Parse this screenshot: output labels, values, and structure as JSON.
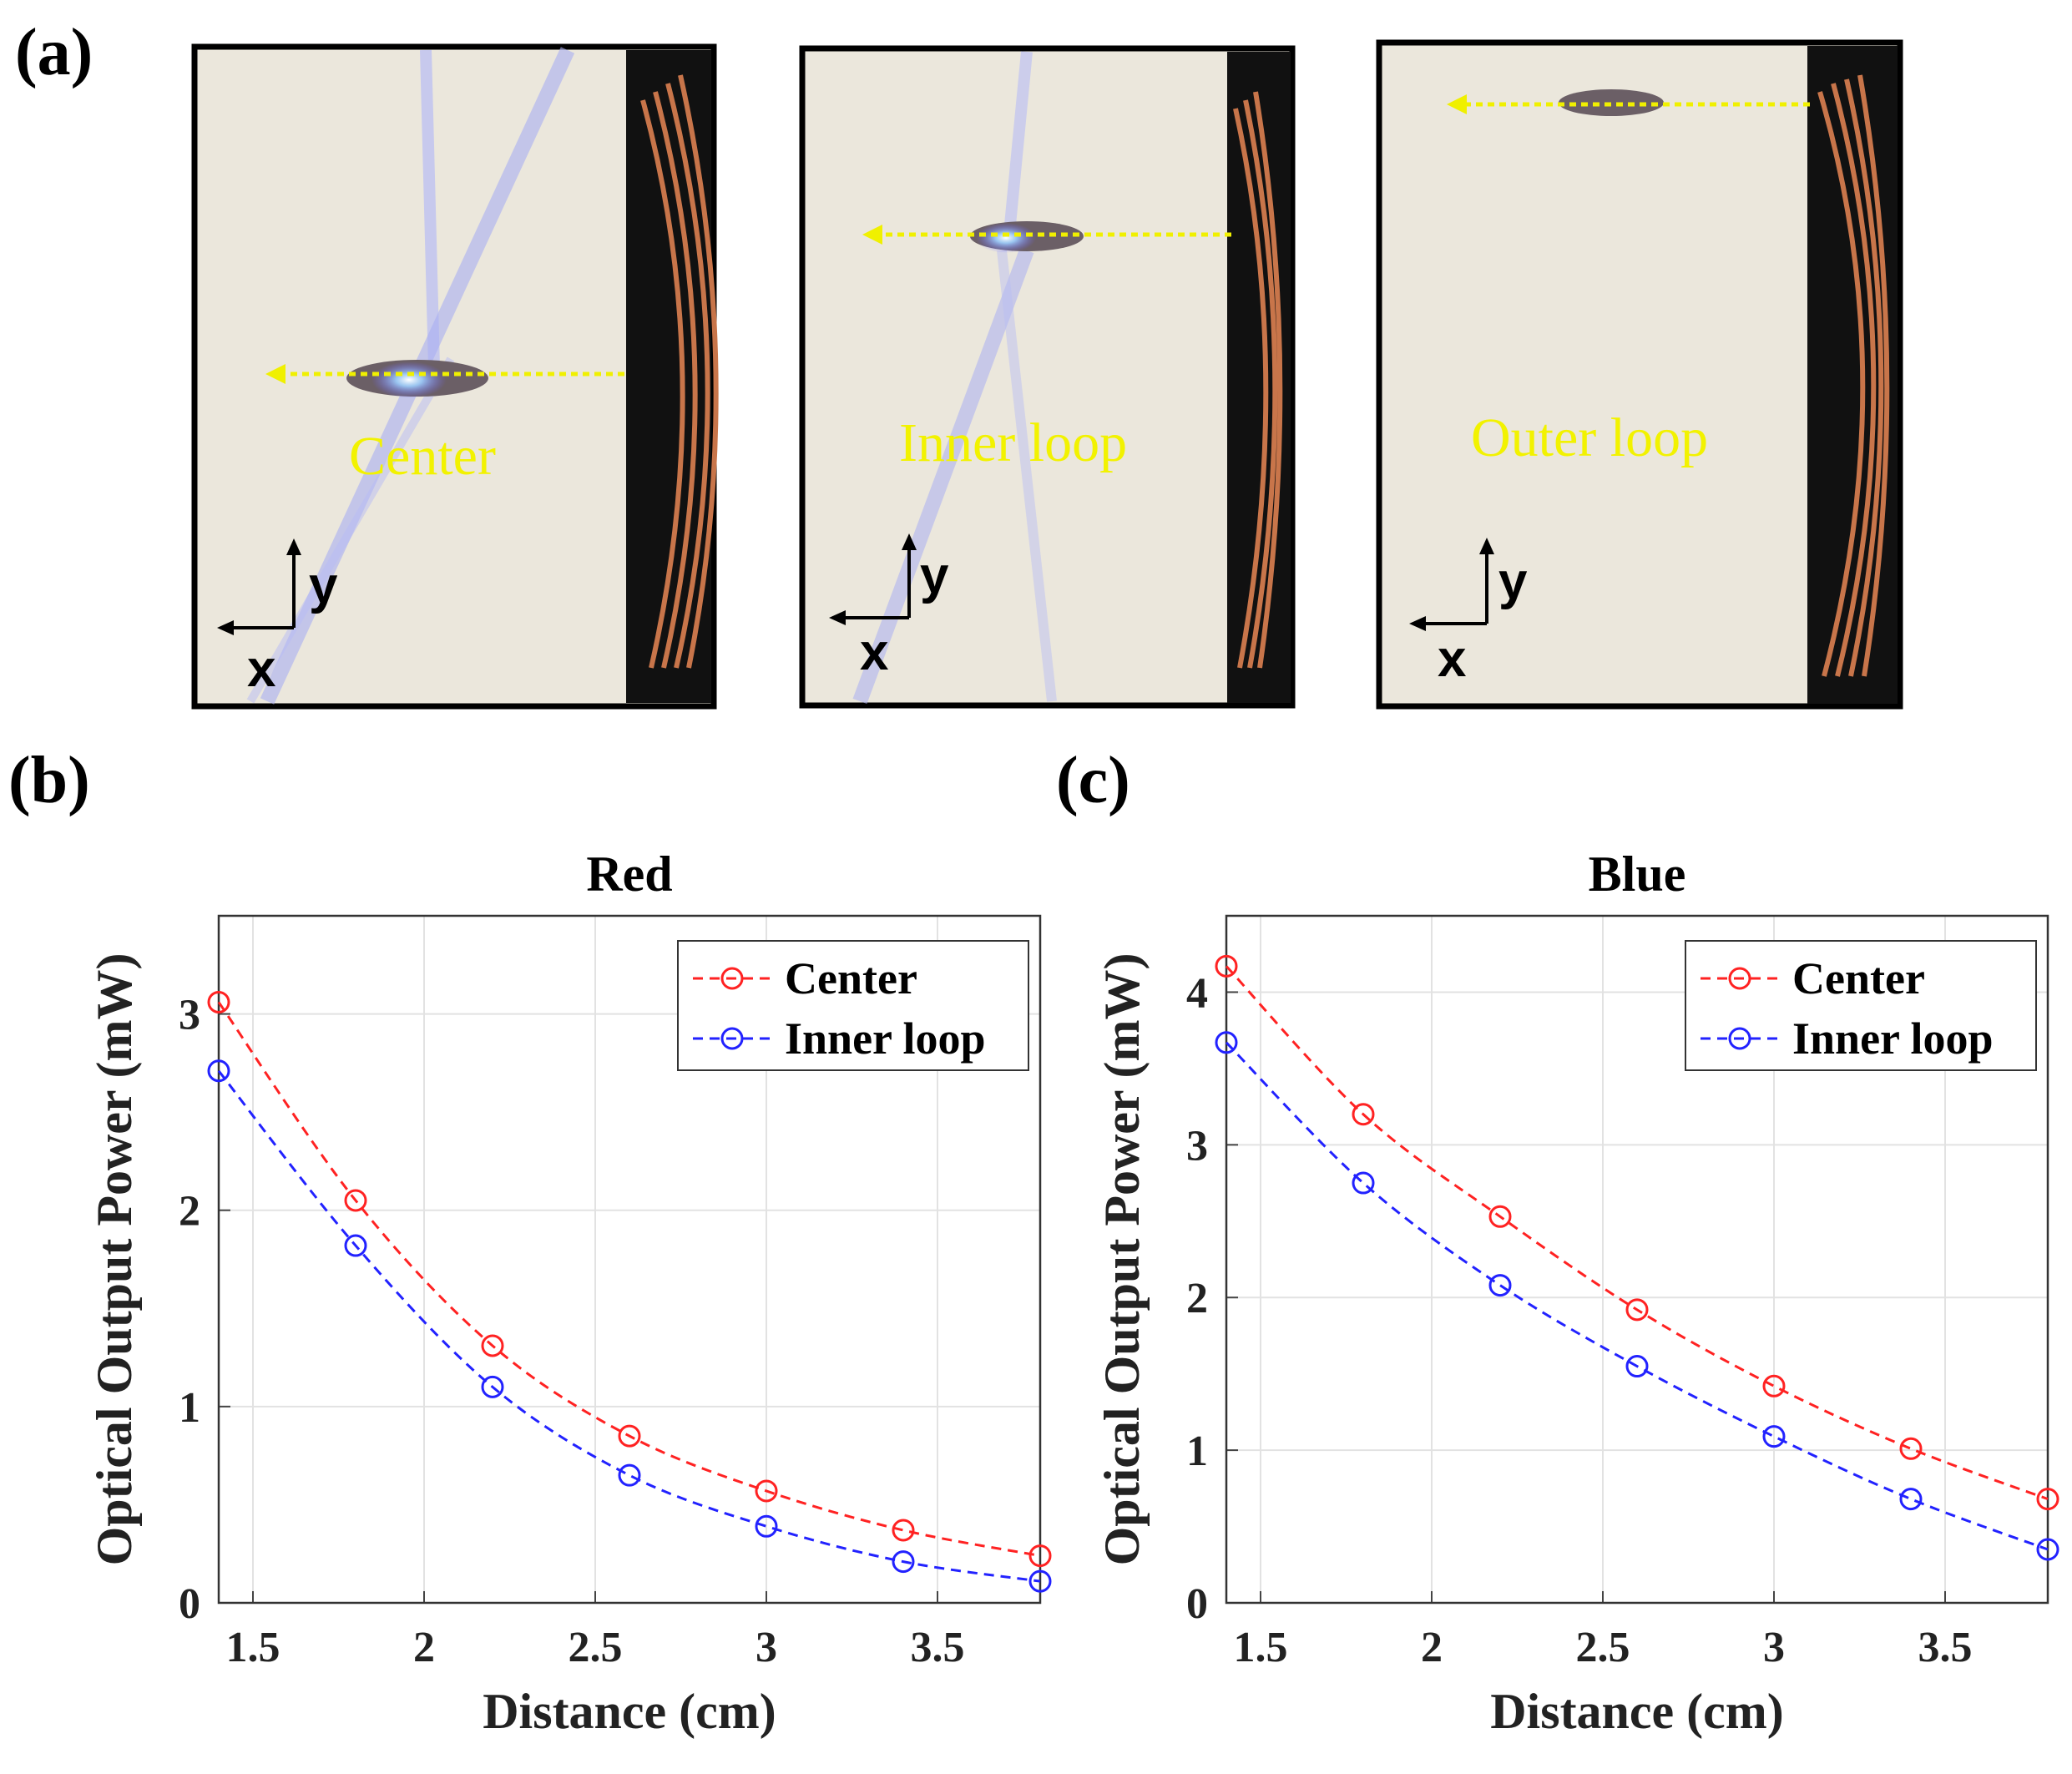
{
  "panels": {
    "a": "(a)",
    "b": "(b)",
    "c": "(c)"
  },
  "photos": [
    {
      "label": "Center",
      "axis_x": "x",
      "axis_y": "y"
    },
    {
      "label": "Inner loop",
      "axis_x": "x",
      "axis_y": "y"
    },
    {
      "label": "Outer loop",
      "axis_x": "x",
      "axis_y": "y"
    }
  ],
  "colors": {
    "center": "#ff2222",
    "inner": "#2222ff",
    "arrow": "#f0f000",
    "photo_bg": "#ebe7dc",
    "coil": "#c8754a"
  },
  "chart_data": [
    {
      "type": "line",
      "title": "Red",
      "xlabel": "Distance (cm)",
      "ylabel": "Optical Output Power (mW)",
      "xlim": [
        1.4,
        3.8
      ],
      "ylim": [
        0,
        3.5
      ],
      "x_ticks": [
        "1.5",
        "2",
        "2.5",
        "3",
        "3.5"
      ],
      "y_ticks": [
        "0",
        "1",
        "2",
        "3"
      ],
      "grid": true,
      "legend_position": "top-right",
      "x": [
        1.4,
        1.8,
        2.2,
        2.6,
        3.0,
        3.4,
        3.8
      ],
      "series": [
        {
          "name": "Center",
          "color": "#ff2222",
          "values": [
            3.06,
            2.05,
            1.31,
            0.85,
            0.57,
            0.37,
            0.24
          ]
        },
        {
          "name": "Inner loop",
          "color": "#2222ff",
          "values": [
            2.71,
            1.82,
            1.1,
            0.65,
            0.39,
            0.21,
            0.11
          ]
        }
      ]
    },
    {
      "type": "line",
      "title": "Blue",
      "xlabel": "Distance (cm)",
      "ylabel": "Optical Output Power (mW)",
      "xlim": [
        1.4,
        3.8
      ],
      "ylim": [
        0,
        4.5
      ],
      "x_ticks": [
        "1.5",
        "2",
        "2.5",
        "3",
        "3.5"
      ],
      "y_ticks": [
        "0",
        "1",
        "2",
        "3",
        "4"
      ],
      "grid": true,
      "legend_position": "top-right",
      "x": [
        1.4,
        1.8,
        2.2,
        2.6,
        3.0,
        3.4,
        3.8
      ],
      "series": [
        {
          "name": "Center",
          "color": "#ff2222",
          "values": [
            4.17,
            3.2,
            2.53,
            1.92,
            1.42,
            1.01,
            0.68
          ]
        },
        {
          "name": "Inner loop",
          "color": "#2222ff",
          "values": [
            3.67,
            2.75,
            2.08,
            1.55,
            1.09,
            0.68,
            0.35
          ]
        }
      ]
    }
  ]
}
